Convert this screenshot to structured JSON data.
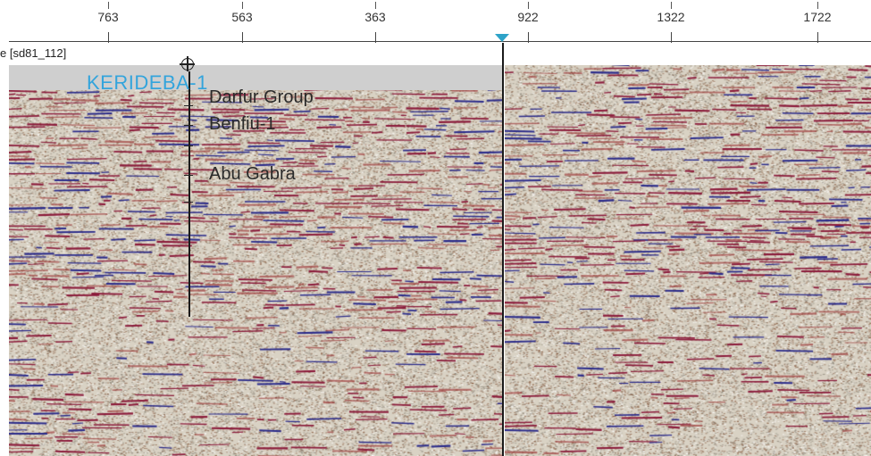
{
  "ruler": {
    "ticks": [
      "763",
      "563",
      "363",
      "922",
      "1322",
      "1722"
    ]
  },
  "section": {
    "label": "e [sd81_112]"
  },
  "well": {
    "name": "KERIDEBA-1",
    "formations": [
      "Darfur Group",
      "Benfiu-1",
      "Abu Gabra"
    ]
  },
  "colors": {
    "well_name": "#33a4dc",
    "cursor_marker": "#2ea3c8",
    "seismic_peak": "#8b1a3a",
    "seismic_trough": "#2a2a8a",
    "seismic_background": "#d9d2c4"
  }
}
